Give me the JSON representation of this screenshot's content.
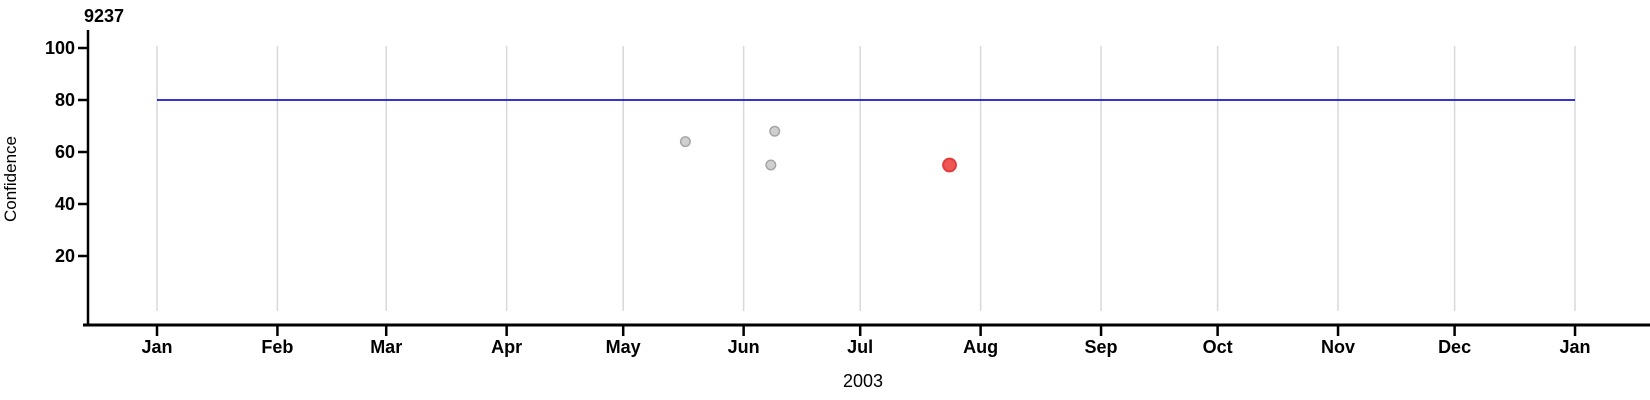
{
  "chart_data": {
    "type": "scatter",
    "title": "9237",
    "ylabel": "Confidence",
    "xlabel": "2003",
    "x_axis": {
      "tick_labels": [
        "Jan",
        "Feb",
        "Mar",
        "Apr",
        "May",
        "Jun",
        "Jul",
        "Aug",
        "Sep",
        "Oct",
        "Nov",
        "Dec",
        "Jan"
      ],
      "tick_day_offsets": [
        0,
        31,
        59,
        90,
        120,
        151,
        181,
        212,
        243,
        273,
        304,
        334,
        365
      ],
      "year": "2003",
      "range_days": [
        0,
        365
      ]
    },
    "y_axis": {
      "ticks": [
        20,
        40,
        60,
        80,
        100
      ],
      "range": [
        -7,
        107
      ]
    },
    "grid": {
      "vertical_monthly": true,
      "horizontal": false,
      "color": "#d9d9d9"
    },
    "reference_line": {
      "y": 80,
      "color": "#1717cd",
      "start_day": 0,
      "end_day": 365
    },
    "series": [
      {
        "name": "comparison-points",
        "fill": "#cfcfcf",
        "stroke": "#a4a4a4",
        "radius": 4.8,
        "points": [
          {
            "date": "2003-05-17",
            "day_offset": 136,
            "confidence": 64
          },
          {
            "date": "2003-06-08",
            "day_offset": 158,
            "confidence": 55
          },
          {
            "date": "2003-06-09",
            "day_offset": 159,
            "confidence": 68
          }
        ]
      },
      {
        "name": "highlighted-point",
        "fill": "#ee5555",
        "stroke": "#e23b3b",
        "radius": 6.4,
        "points": [
          {
            "date": "2003-07-24",
            "day_offset": 204,
            "confidence": 55
          }
        ]
      }
    ],
    "axis_color": "#000000",
    "legend": "none"
  }
}
